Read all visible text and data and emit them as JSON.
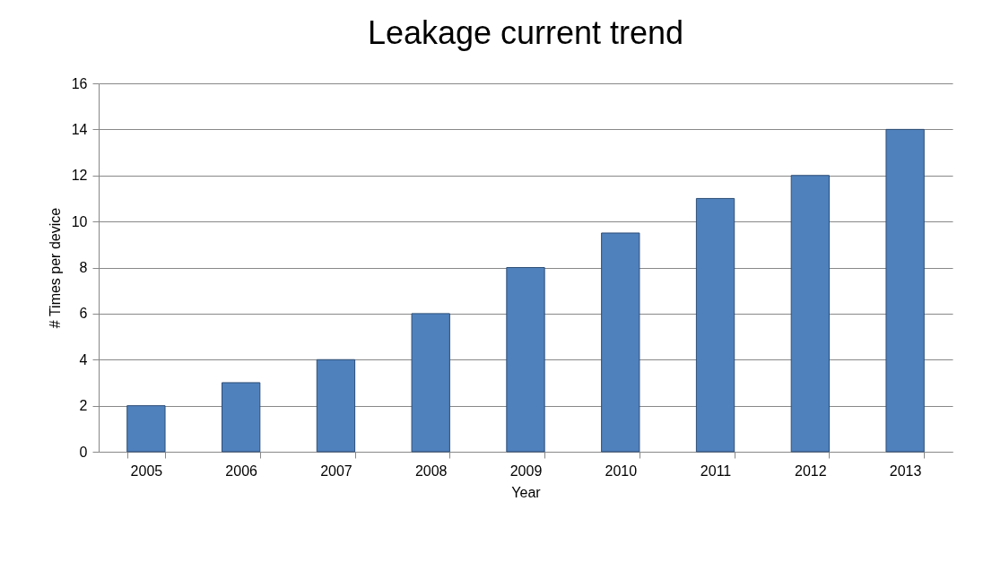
{
  "chart_data": {
    "type": "bar",
    "title": "Leakage current trend",
    "xlabel": "Year",
    "ylabel": "# Times per device",
    "categories": [
      "2005",
      "2006",
      "2007",
      "2008",
      "2009",
      "2010",
      "2011",
      "2012",
      "2013"
    ],
    "values": [
      2,
      3,
      4,
      6,
      8,
      9.5,
      11,
      12,
      14
    ],
    "color": "#4f81bd",
    "ylim": [
      0,
      16
    ],
    "yticks": [
      0,
      2,
      4,
      6,
      8,
      10,
      12,
      14,
      16
    ],
    "grid": "y"
  }
}
